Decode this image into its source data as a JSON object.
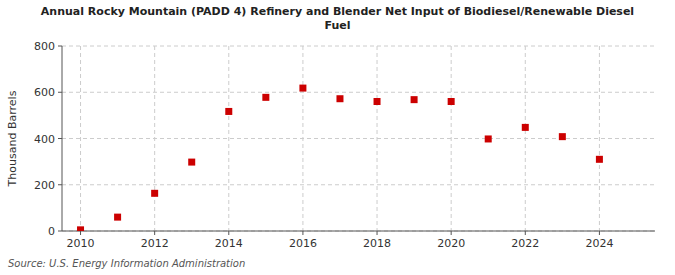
{
  "chart_data": {
    "type": "scatter",
    "title": "Annual Rocky Mountain (PADD 4) Refinery and Blender Net Input of Biodiesel/Renewable Diesel\nFuel",
    "ylabel": "Thousand Barrels",
    "source": "Source: U.S. Energy Information Administration",
    "x": [
      2010,
      2011,
      2012,
      2013,
      2014,
      2015,
      2016,
      2017,
      2018,
      2019,
      2020,
      2021,
      2022,
      2023,
      2024
    ],
    "values": [
      5,
      60,
      163,
      298,
      517,
      578,
      618,
      572,
      560,
      568,
      560,
      398,
      448,
      408,
      310
    ],
    "color": "#cc0000",
    "marker": "square",
    "xlim": [
      2009.5,
      2025.5
    ],
    "ylim": [
      0,
      800
    ],
    "xticks": [
      2010,
      2012,
      2014,
      2016,
      2018,
      2020,
      2022,
      2024
    ],
    "yticks": [
      0,
      200,
      400,
      600,
      800
    ],
    "grid": true
  }
}
